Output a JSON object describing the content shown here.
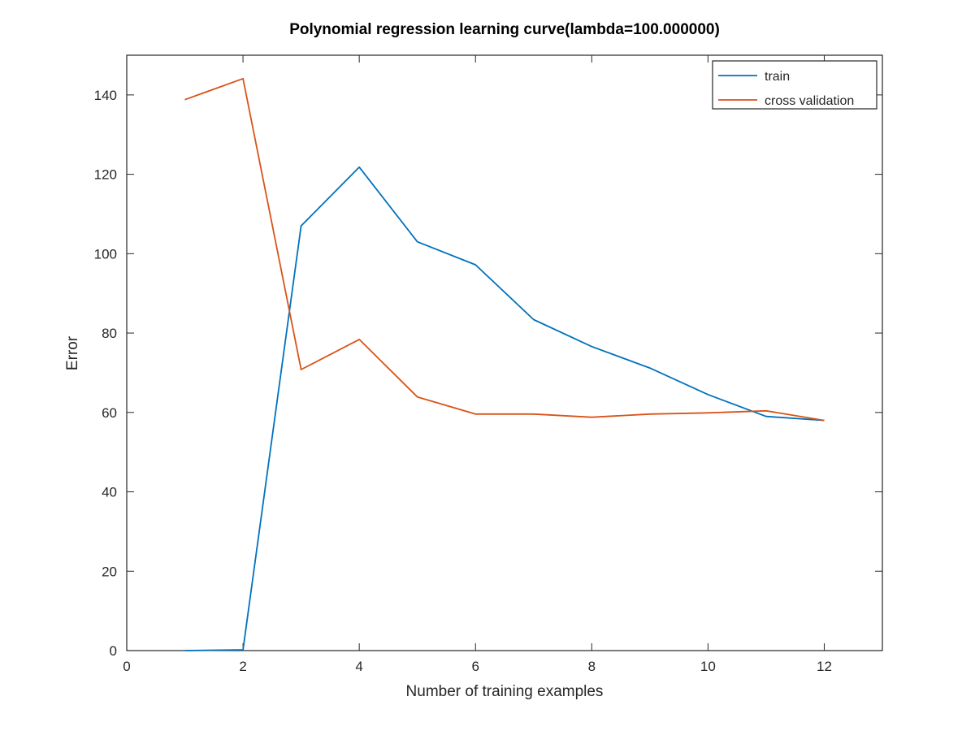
{
  "chart_data": {
    "type": "line",
    "title": "Polynomial regression learning curve(lambda=100.000000)",
    "xlabel": "Number of training examples",
    "ylabel": "Error",
    "xlim": [
      0,
      13
    ],
    "ylim": [
      0,
      150
    ],
    "xticks": [
      0,
      2,
      4,
      6,
      8,
      10,
      12
    ],
    "yticks": [
      0,
      20,
      40,
      60,
      80,
      100,
      120,
      140
    ],
    "grid": false,
    "legend_position": "top-right",
    "x": [
      1,
      2,
      3,
      4,
      5,
      6,
      7,
      8,
      9,
      10,
      11,
      12
    ],
    "series": [
      {
        "name": "train",
        "color": "#0072bd",
        "values": [
          0,
          0.2,
          107,
          121.8,
          103,
          97.2,
          83.4,
          76.6,
          71.2,
          64.5,
          59,
          58
        ]
      },
      {
        "name": "cross validation",
        "color": "#d95319",
        "values": [
          138.8,
          144.1,
          70.8,
          78.4,
          63.9,
          59.6,
          59.6,
          58.8,
          59.6,
          59.9,
          60.4,
          58
        ]
      }
    ]
  }
}
